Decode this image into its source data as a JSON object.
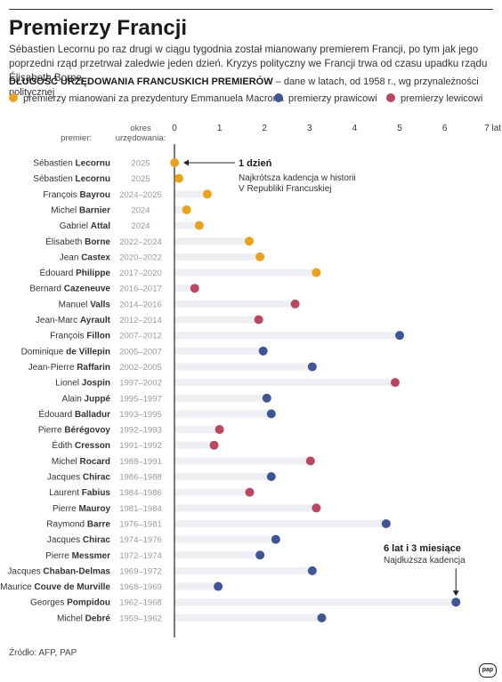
{
  "title": "Premierzy Francji",
  "lead": "Sébastien Lecornu po raz drugi w ciągu tygodnia został mianowany premierem Francji, po tym jak jego poprzedni rząd przetrwał zaledwie jeden dzień. Kryzys polityczny we Francji trwa od czasu upadku rządu Élisabeth Borne.",
  "subhead_bold": "DŁUGOŚĆ URZĘDOWANIA FRANCUSKICH PREMIERÓW",
  "subhead_rest": " – dane w latach, od 1958 r., wg przynależności politycznej",
  "legend": [
    {
      "label": "premierzy mianowani za prezydentury Emmanuela Macrona",
      "color": "#e8a21d"
    },
    {
      "label": "premierzy prawicowi",
      "color": "#3f5694"
    },
    {
      "label": "premierzy lewicowi",
      "color": "#b9475f"
    }
  ],
  "source": "Źródło: AFP, PAP",
  "logo": "pap",
  "chart_data": {
    "type": "scatter",
    "title": "",
    "xlabel": "",
    "ylabel": "",
    "xlim": [
      0,
      7
    ],
    "x_ticks": [
      "0",
      "1",
      "2",
      "3",
      "4",
      "5",
      "6",
      "7 lat"
    ],
    "col_header_name": "premier:",
    "col_header_term": "okres urzędowania:",
    "grid": false,
    "legend_position": "top",
    "categories": [
      "macron",
      "right",
      "left"
    ],
    "colors": {
      "macron": "#e8a21d",
      "right": "#3f5694",
      "left": "#b9475f",
      "track": "#eeeff3"
    },
    "rows": [
      {
        "first": "Sébastien",
        "last": "Lecornu",
        "term": "2025",
        "years": 0.003,
        "group": "macron"
      },
      {
        "first": "Sébastien",
        "last": "Lecornu",
        "term": "2025",
        "years": 0.1,
        "group": "macron"
      },
      {
        "first": "François",
        "last": "Bayrou",
        "term": "2024–2025",
        "years": 0.73,
        "group": "macron"
      },
      {
        "first": "Michel",
        "last": "Barnier",
        "term": "2024",
        "years": 0.27,
        "group": "macron"
      },
      {
        "first": "Gabriel",
        "last": "Attal",
        "term": "2024",
        "years": 0.55,
        "group": "macron"
      },
      {
        "first": "Élisabeth",
        "last": "Borne",
        "term": "2022–2024",
        "years": 1.66,
        "group": "macron"
      },
      {
        "first": "Jean",
        "last": "Castex",
        "term": "2020–2022",
        "years": 1.9,
        "group": "macron"
      },
      {
        "first": "Édouard",
        "last": "Philippe",
        "term": "2017–2020",
        "years": 3.15,
        "group": "macron"
      },
      {
        "first": "Bernard",
        "last": "Cazeneuve",
        "term": "2016–2017",
        "years": 0.45,
        "group": "left"
      },
      {
        "first": "Manuel",
        "last": "Valls",
        "term": "2014–2016",
        "years": 2.68,
        "group": "left"
      },
      {
        "first": "Jean-Marc",
        "last": "Ayrault",
        "term": "2012–2014",
        "years": 1.87,
        "group": "left"
      },
      {
        "first": "François",
        "last": "Fillon",
        "term": "2007–2012",
        "years": 5.0,
        "group": "right"
      },
      {
        "first": "Dominique",
        "last": "de Villepin",
        "term": "2005–2007",
        "years": 1.97,
        "group": "right"
      },
      {
        "first": "Jean-Pierre",
        "last": "Raffarin",
        "term": "2002–2005",
        "years": 3.06,
        "group": "right"
      },
      {
        "first": "Lionel",
        "last": "Jospin",
        "term": "1997–2002",
        "years": 4.9,
        "group": "left"
      },
      {
        "first": "Alain",
        "last": "Juppé",
        "term": "1995–1997",
        "years": 2.05,
        "group": "right"
      },
      {
        "first": "Édouard",
        "last": "Balladur",
        "term": "1993–1995",
        "years": 2.15,
        "group": "right"
      },
      {
        "first": "Pierre",
        "last": "Bérégovoy",
        "term": "1992–1993",
        "years": 1.0,
        "group": "left"
      },
      {
        "first": "Édith",
        "last": "Cresson",
        "term": "1991–1992",
        "years": 0.88,
        "group": "left"
      },
      {
        "first": "Michel",
        "last": "Rocard",
        "term": "1988–1991",
        "years": 3.02,
        "group": "left"
      },
      {
        "first": "Jacques",
        "last": "Chirac",
        "term": "1986–1988",
        "years": 2.15,
        "group": "right"
      },
      {
        "first": "Laurent",
        "last": "Fabius",
        "term": "1984–1986",
        "years": 1.67,
        "group": "left"
      },
      {
        "first": "Pierre",
        "last": "Mauroy",
        "term": "1981–1984",
        "years": 3.15,
        "group": "left"
      },
      {
        "first": "Raymond",
        "last": "Barre",
        "term": "1976–1981",
        "years": 4.7,
        "group": "right"
      },
      {
        "first": "Jacques",
        "last": "Chirac",
        "term": "1974–1976",
        "years": 2.25,
        "group": "right"
      },
      {
        "first": "Pierre",
        "last": "Messmer",
        "term": "1972–1974",
        "years": 1.9,
        "group": "right"
      },
      {
        "first": "Jacques",
        "last": "Chaban-Delmas",
        "term": "1969–1972",
        "years": 3.06,
        "group": "right"
      },
      {
        "first": "Maurice",
        "last": "Couve de Murville",
        "term": "1968–1969",
        "years": 0.97,
        "group": "right"
      },
      {
        "first": "Georges",
        "last": "Pompidou",
        "term": "1962–1968",
        "years": 6.25,
        "group": "right"
      },
      {
        "first": "Michel",
        "last": "Debré",
        "term": "1959–1962",
        "years": 3.27,
        "group": "right"
      }
    ],
    "annotations": [
      {
        "row": 0,
        "title": "1 dzień",
        "lines": [
          "Najkrótsza kadencja w historii",
          "V Republiki Francuskiej"
        ]
      },
      {
        "row": 28,
        "title": "6 lat i 3 miesiące",
        "lines": [
          "Najdłuższa kadencja"
        ]
      }
    ]
  }
}
